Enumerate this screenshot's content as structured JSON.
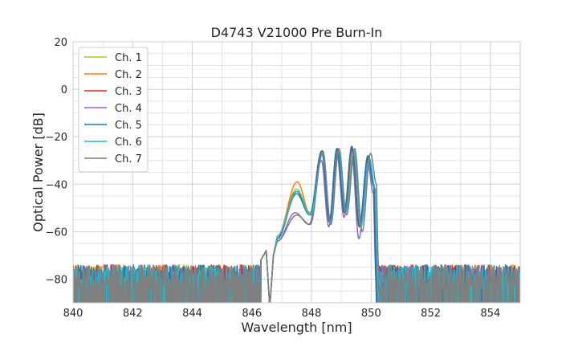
{
  "chart_data": {
    "type": "line",
    "title": "D4743 V21000 Pre Burn-In",
    "xlabel": "Wavelength [nm]",
    "ylabel": "Optical Power [dB]",
    "xlim": [
      840,
      855
    ],
    "ylim": [
      -90,
      20
    ],
    "xticks": [
      840,
      842,
      844,
      846,
      848,
      850,
      852,
      854
    ],
    "yticks": [
      20,
      0,
      -20,
      -40,
      -60,
      -80
    ],
    "grid": true,
    "legend_position": "top-left",
    "noise_floor_db": -80,
    "series": [
      {
        "name": "Ch. 1",
        "color": "#bcbd22",
        "x": [
          846.85,
          847.5,
          847.95,
          848.35,
          848.6,
          848.85,
          849.1,
          849.35,
          849.6,
          849.9,
          850.1
        ],
        "y": [
          -62,
          -42,
          -52,
          -27,
          -55,
          -25,
          -51,
          -24,
          -58,
          -28,
          -40
        ]
      },
      {
        "name": "Ch. 2",
        "color": "#ff7f0e",
        "x": [
          846.85,
          847.52,
          847.97,
          848.37,
          848.63,
          848.88,
          849.13,
          849.38,
          849.63,
          849.92,
          850.12
        ],
        "y": [
          -62,
          -39,
          -53,
          -26,
          -56,
          -25,
          -52,
          -25,
          -58,
          -29,
          -42
        ]
      },
      {
        "name": "Ch. 3",
        "color": "#d62728",
        "x": [
          846.85,
          847.5,
          847.95,
          848.36,
          848.61,
          848.86,
          849.11,
          849.36,
          849.61,
          849.9,
          850.1
        ],
        "y": [
          -63,
          -43,
          -53,
          -26,
          -56,
          -25,
          -52,
          -25,
          -58,
          -29,
          -41
        ]
      },
      {
        "name": "Ch. 4",
        "color": "#9467bd",
        "x": [
          846.85,
          847.45,
          847.92,
          848.33,
          848.58,
          848.84,
          849.09,
          849.34,
          849.59,
          849.88,
          850.08
        ],
        "y": [
          -64,
          -52,
          -57,
          -30,
          -58,
          -26,
          -54,
          -26,
          -63,
          -31,
          -44
        ]
      },
      {
        "name": "Ch. 5",
        "color": "#1f77b4",
        "x": [
          846.85,
          847.5,
          847.94,
          848.34,
          848.6,
          848.85,
          849.1,
          849.35,
          849.6,
          849.89,
          850.09
        ],
        "y": [
          -63,
          -44,
          -53,
          -26,
          -56,
          -25,
          -52,
          -24,
          -58,
          -28,
          -41
        ]
      },
      {
        "name": "Ch. 6",
        "color": "#17becf",
        "x": [
          846.85,
          847.52,
          847.96,
          848.38,
          848.64,
          848.9,
          849.15,
          849.42,
          849.66,
          849.94,
          850.14
        ],
        "y": [
          -62,
          -43,
          -53,
          -27,
          -56,
          -26,
          -52,
          -26,
          -58,
          -29,
          -42
        ]
      },
      {
        "name": "Ch. 7",
        "color": "#7f7f7f",
        "x": [
          846.85,
          847.5,
          847.96,
          848.38,
          848.65,
          848.92,
          849.18,
          849.45,
          849.7,
          849.98,
          850.18
        ],
        "y": [
          -64,
          -53,
          -57,
          -26,
          -57,
          -25,
          -53,
          -25,
          -60,
          -27,
          -40
        ]
      }
    ]
  }
}
